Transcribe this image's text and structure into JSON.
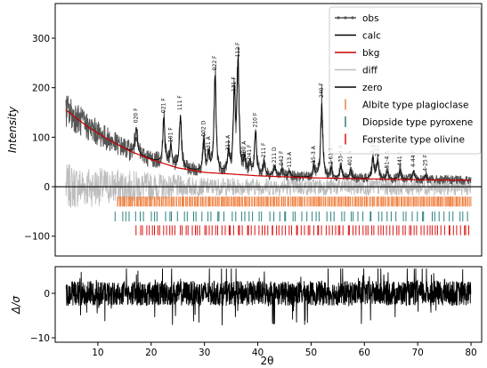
{
  "chart_data": {
    "type": "line",
    "xlabel": "2θ",
    "xlim": [
      2,
      82
    ],
    "xticks": [
      "10",
      "20",
      "30",
      "40",
      "50",
      "60",
      "70",
      "80"
    ],
    "top": {
      "ylabel": "Intensity",
      "ylim": [
        -140,
        370
      ],
      "yticks": [
        "−100",
        "0",
        "100",
        "200",
        "300"
      ],
      "legend": {
        "placement": "top-right",
        "entries": [
          {
            "label": "obs",
            "color": "#555555",
            "style": "line-dots"
          },
          {
            "label": "calc",
            "color": "#000000",
            "style": "line"
          },
          {
            "label": "bkg",
            "color": "#cc0000",
            "style": "line"
          },
          {
            "label": "diff",
            "color": "#bdbdbd",
            "style": "line"
          },
          {
            "label": "zero",
            "color": "#000000",
            "style": "line"
          },
          {
            "label": "Albite type plagioclase",
            "color": "#f08040",
            "style": "tick"
          },
          {
            "label": "Diopside type pyroxene",
            "color": "#2a8080",
            "style": "tick"
          },
          {
            "label": "Forsterite type olivine",
            "color": "#dd1111",
            "style": "tick"
          }
        ]
      },
      "background_curve": {
        "x": [
          4,
          8,
          12,
          16,
          20,
          25,
          30,
          40,
          50,
          60,
          70,
          80
        ],
        "y": [
          155,
          122,
          95,
          72,
          55,
          38,
          29,
          22,
          18,
          16,
          14,
          13
        ]
      },
      "peaks": [
        {
          "x": 17.2,
          "height": 55,
          "label": "020 F"
        },
        {
          "x": 22.4,
          "height": 95,
          "label": "021 F"
        },
        {
          "x": 23.7,
          "height": 40,
          "label": "101 F"
        },
        {
          "x": 25.5,
          "height": 110,
          "label": "111 F"
        },
        {
          "x": 29.9,
          "height": 65,
          "label": "002 D"
        },
        {
          "x": 30.8,
          "height": 35,
          "label": "131 A"
        },
        {
          "x": 32.0,
          "height": 200,
          "label": "022 F"
        },
        {
          "x": 34.5,
          "height": 40,
          "label": "311 A"
        },
        {
          "x": 35.6,
          "height": 160,
          "label": "131 F"
        },
        {
          "x": 36.3,
          "height": 230,
          "label": "112 F"
        },
        {
          "x": 37.5,
          "height": 30,
          "label": "200 A"
        },
        {
          "x": 38.5,
          "height": 25,
          "label": "041 F"
        },
        {
          "x": 39.6,
          "height": 90,
          "label": "210 F"
        },
        {
          "x": 41.2,
          "height": 30,
          "label": "211 F"
        },
        {
          "x": 43.2,
          "height": 20,
          "label": "211 D"
        },
        {
          "x": 44.5,
          "height": 15,
          "label": "042 F"
        },
        {
          "x": 46.0,
          "height": 12,
          "label": "113 A"
        },
        {
          "x": 50.5,
          "height": 22,
          "label": "15-3 A"
        },
        {
          "x": 52.0,
          "height": 155,
          "label": "240 F"
        },
        {
          "x": 53.8,
          "height": 20,
          "label": "2-61 A"
        },
        {
          "x": 55.6,
          "height": 25,
          "label": "33-4 A"
        },
        {
          "x": 57.4,
          "height": 18,
          "label": "401 A"
        },
        {
          "x": 61.6,
          "height": 45,
          "label": "2-44 A"
        },
        {
          "x": 62.5,
          "height": 38,
          "label": "2-31 F"
        },
        {
          "x": 64.3,
          "height": 15,
          "label": "51-4 A"
        },
        {
          "x": 66.7,
          "height": 20,
          "label": "441 F"
        },
        {
          "x": 69.2,
          "height": 18,
          "label": "4-44 F"
        },
        {
          "x": 71.5,
          "height": 10,
          "label": "4-25 F"
        }
      ],
      "tick_rows": [
        {
          "phase": "Albite type plagioclase",
          "y": -30,
          "x_range": [
            13.5,
            80
          ],
          "count": 290
        },
        {
          "phase": "Diopside type pyroxene",
          "y": -60,
          "x_range": [
            13,
            80
          ],
          "count": 75
        },
        {
          "phase": "Forsterite type olivine",
          "y": -88,
          "x_range": [
            17,
            80
          ],
          "count": 110
        }
      ]
    },
    "bottom": {
      "ylabel": "Δ/σ",
      "ylim": [
        -11,
        6
      ],
      "yticks": [
        "−10",
        "0"
      ],
      "residual_range": [
        -9,
        5
      ]
    }
  }
}
